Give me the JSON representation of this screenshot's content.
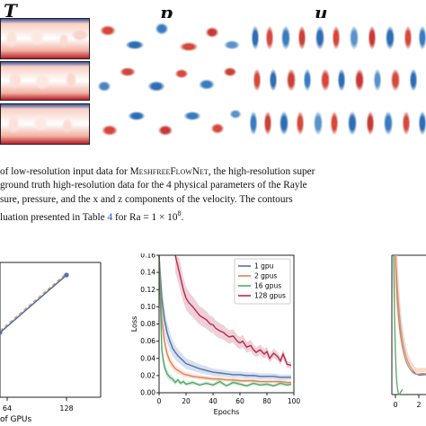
{
  "figure_top": {
    "variables": [
      "T",
      "p",
      "u"
    ],
    "row_count": 3
  },
  "caption": {
    "line1_a": "of low-resolution input data for ",
    "line1_sc": "MeshfreeFlowNet",
    "line1_b": ", the high-resolution super",
    "line2": "ground truth high-resolution data for the 4 physical parameters of the Rayle",
    "line3": "sure, pressure, and the x and z components of the velocity.  The contours",
    "line4_a": "luation presented in Table ",
    "line4_link": "4",
    "line4_b": " for Ra = 1 × 10",
    "line4_sup": "8",
    "line4_c": "."
  },
  "left_chart": {
    "xlabel": "of GPUs",
    "xticks": [
      "64",
      "128"
    ]
  },
  "chart_data": {
    "type": "line",
    "xlabel": "Epochs",
    "ylabel": "Loss",
    "xlim": [
      0,
      100
    ],
    "ylim": [
      0,
      0.16
    ],
    "xticks": [
      0,
      20,
      40,
      60,
      80,
      100
    ],
    "yticks": [
      0.0,
      0.02,
      0.04,
      0.06,
      0.08,
      0.1,
      0.12,
      0.14,
      0.16
    ],
    "ytick_labels": [
      "0.00",
      "0.02",
      "0.04",
      "0.06",
      "0.08",
      "0.10",
      "0.12",
      "0.14",
      "0.16"
    ],
    "legend_position": "top-right",
    "series": [
      {
        "name": "1 gpu",
        "color": "#4c72b0",
        "x": [
          0,
          2,
          4,
          6,
          8,
          10,
          12,
          14,
          16,
          18,
          20,
          25,
          30,
          35,
          40,
          45,
          50,
          55,
          60,
          65,
          70,
          75,
          80,
          85,
          90,
          95,
          98
        ],
        "y": [
          0.16,
          0.11,
          0.085,
          0.07,
          0.06,
          0.052,
          0.047,
          0.043,
          0.04,
          0.037,
          0.034,
          0.031,
          0.028,
          0.026,
          0.024,
          0.023,
          0.022,
          0.021,
          0.021,
          0.02,
          0.02,
          0.019,
          0.019,
          0.019,
          0.018,
          0.018,
          0.018
        ]
      },
      {
        "name": "2 gpus",
        "color": "#dd8452",
        "x": [
          0,
          2,
          4,
          6,
          8,
          10,
          12,
          14,
          16,
          18,
          20,
          25,
          30,
          35,
          40,
          45,
          50,
          55,
          60,
          65,
          70,
          75,
          80,
          85,
          90,
          95,
          98
        ],
        "y": [
          0.16,
          0.085,
          0.06,
          0.045,
          0.037,
          0.032,
          0.028,
          0.026,
          0.024,
          0.022,
          0.021,
          0.019,
          0.018,
          0.017,
          0.016,
          0.016,
          0.015,
          0.015,
          0.014,
          0.014,
          0.014,
          0.013,
          0.013,
          0.013,
          0.013,
          0.012,
          0.012
        ]
      },
      {
        "name": "16 gpus",
        "color": "#55a868",
        "x": [
          0,
          2,
          4,
          6,
          8,
          10,
          12,
          14,
          16,
          18,
          20,
          25,
          30,
          35,
          40,
          45,
          50,
          55,
          60,
          65,
          70,
          75,
          80,
          85,
          90,
          95,
          98
        ],
        "y": [
          0.16,
          0.05,
          0.03,
          0.022,
          0.018,
          0.016,
          0.012,
          0.015,
          0.011,
          0.013,
          0.01,
          0.012,
          0.009,
          0.011,
          0.009,
          0.013,
          0.008,
          0.012,
          0.01,
          0.008,
          0.011,
          0.009,
          0.01,
          0.008,
          0.011,
          0.009,
          0.01
        ]
      },
      {
        "name": "128 gpus",
        "color": "#b5294e",
        "x": [
          12,
          15,
          18,
          20,
          22,
          25,
          28,
          30,
          32,
          35,
          38,
          40,
          42,
          45,
          48,
          50,
          52,
          55,
          58,
          60,
          62,
          65,
          68,
          70,
          72,
          75,
          78,
          80,
          82,
          85,
          88,
          90,
          92,
          95,
          98
        ],
        "y": [
          0.16,
          0.14,
          0.12,
          0.11,
          0.105,
          0.1,
          0.094,
          0.09,
          0.088,
          0.085,
          0.08,
          0.079,
          0.075,
          0.072,
          0.07,
          0.067,
          0.065,
          0.066,
          0.06,
          0.058,
          0.06,
          0.053,
          0.055,
          0.05,
          0.047,
          0.05,
          0.045,
          0.048,
          0.04,
          0.046,
          0.042,
          0.037,
          0.045,
          0.033,
          0.032
        ]
      }
    ]
  },
  "right_chart": {
    "xticks": [
      "0",
      "2"
    ]
  }
}
